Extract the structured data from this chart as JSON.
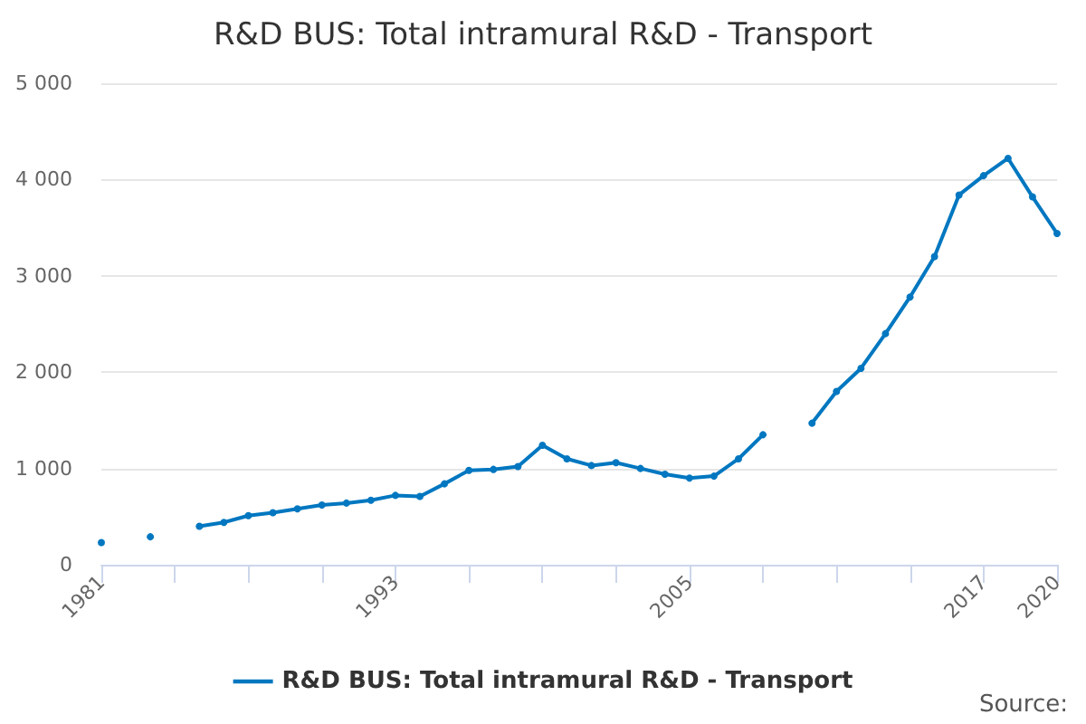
{
  "chart_data": {
    "type": "line",
    "title": "R&D BUS: Total intramural R&D - Transport",
    "x": [
      1981,
      1982,
      1983,
      1984,
      1985,
      1986,
      1987,
      1988,
      1989,
      1990,
      1991,
      1992,
      1993,
      1994,
      1995,
      1996,
      1997,
      1998,
      1999,
      2000,
      2001,
      2002,
      2003,
      2004,
      2005,
      2006,
      2007,
      2008,
      2009,
      2010,
      2011,
      2012,
      2013,
      2014,
      2015,
      2016,
      2017,
      2018,
      2019,
      2020
    ],
    "series": [
      {
        "name": "R&D BUS: Total intramural R&D - Transport",
        "color": "#0077c0",
        "values": [
          230,
          null,
          290,
          null,
          400,
          440,
          510,
          540,
          580,
          620,
          640,
          670,
          720,
          710,
          840,
          980,
          990,
          1020,
          1240,
          1100,
          1030,
          1060,
          1000,
          940,
          900,
          920,
          1100,
          1350,
          null,
          1470,
          1800,
          2040,
          2400,
          2780,
          3200,
          3840,
          4040,
          4220,
          3820,
          3440
        ]
      }
    ],
    "xlim": [
      1981,
      2020
    ],
    "xticks": [
      1981,
      {
        "value": 1984,
        "label": null
      },
      {
        "value": 1987,
        "label": null
      },
      {
        "value": 1990,
        "label": null
      },
      1993,
      {
        "value": 1996,
        "label": null
      },
      {
        "value": 1999,
        "label": null
      },
      {
        "value": 2002,
        "label": null
      },
      2005,
      {
        "value": 2008,
        "label": null
      },
      {
        "value": 2011,
        "label": null
      },
      {
        "value": 2014,
        "label": null
      },
      2017,
      2020
    ],
    "ylim": [
      0,
      5000
    ],
    "yticks": [
      0,
      {
        "value": 1000,
        "label": "1 000"
      },
      {
        "value": 2000,
        "label": "2 000"
      },
      {
        "value": 3000,
        "label": "3 000"
      },
      {
        "value": 4000,
        "label": "4 000"
      },
      {
        "value": 5000,
        "label": "5 000"
      }
    ],
    "grid": "y",
    "legend": "bottom",
    "marker": "circle",
    "line_style": "solid",
    "annotations": [
      "Source:"
    ]
  }
}
